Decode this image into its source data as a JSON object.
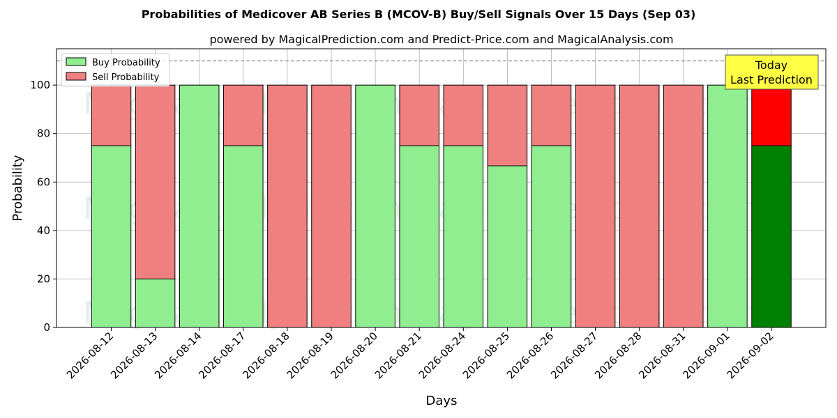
{
  "chart_data": {
    "type": "bar",
    "stacked": true,
    "title": "Probabilities of Medicover AB Series B (MCOV-B) Buy/Sell Signals Over 15 Days (Sep 03)",
    "subtitle": "powered by MagicalPrediction.com and Predict-Price.com and MagicalAnalysis.com",
    "xlabel": "Days",
    "ylabel": "Probability",
    "ylim": [
      0,
      115
    ],
    "yticks": [
      0,
      20,
      40,
      60,
      80,
      100
    ],
    "grid": true,
    "legend_position": "top-left",
    "categories": [
      "2026-08-12",
      "2026-08-13",
      "2026-08-14",
      "2026-08-17",
      "2026-08-18",
      "2026-08-19",
      "2026-08-20",
      "2026-08-21",
      "2026-08-24",
      "2026-08-25",
      "2026-08-26",
      "2026-08-27",
      "2026-08-28",
      "2026-08-31",
      "2026-09-01",
      "2026-09-02"
    ],
    "series": [
      {
        "name": "Buy Probability",
        "color": "#90ee90",
        "values": [
          75,
          20,
          100,
          75,
          0,
          0,
          100,
          75,
          75,
          66.7,
          75,
          0,
          0,
          0,
          100,
          75
        ]
      },
      {
        "name": "Sell Probability",
        "color": "#f08080",
        "values": [
          25,
          80,
          0,
          25,
          100,
          100,
          0,
          25,
          25,
          33.3,
          25,
          100,
          100,
          100,
          0,
          25
        ]
      }
    ],
    "highlight": {
      "index": 15,
      "buy_color": "#008000",
      "sell_color": "#ff0000"
    },
    "reference_line": {
      "value": 110,
      "style": "dashed",
      "color": "#808080"
    },
    "annotation": {
      "lines": [
        "Today",
        "Last Prediction"
      ],
      "background": "#ffff44"
    },
    "watermarks": [
      "MagicalAnalysis.com",
      "MagicalPrediction.com"
    ]
  }
}
